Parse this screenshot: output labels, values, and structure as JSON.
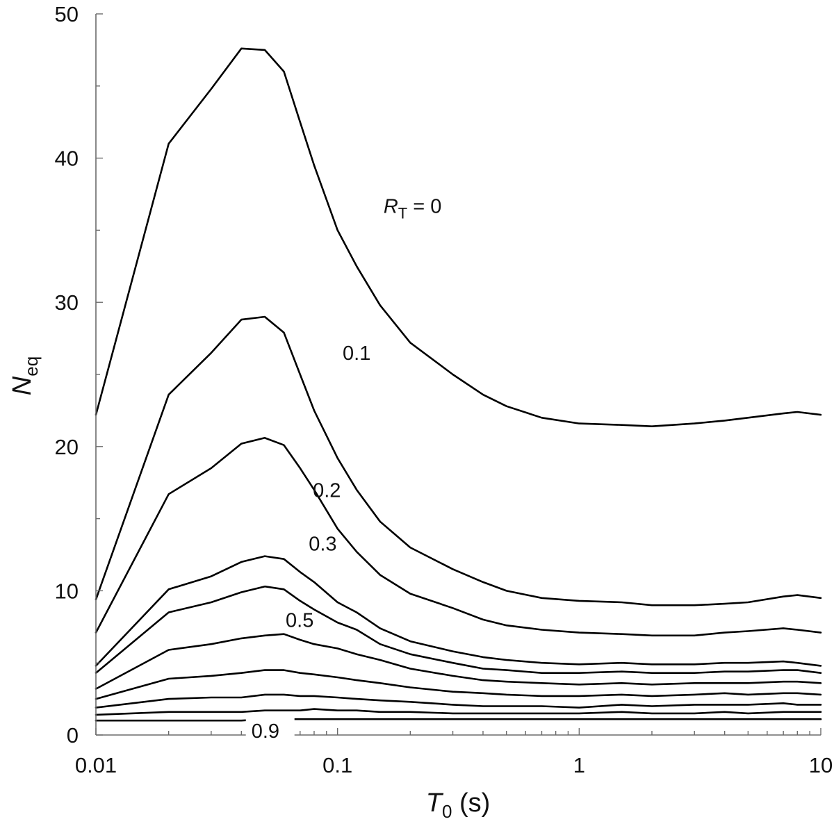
{
  "chart_data": {
    "type": "line",
    "title": "",
    "xlabel": {
      "main": "T",
      "sub": "0",
      "rest": " (s)"
    },
    "ylabel": {
      "main": "N",
      "sub": "eq"
    },
    "xscale": "log",
    "xlim": [
      0.01,
      10
    ],
    "ylim": [
      0,
      50
    ],
    "grid": false,
    "legend": "none",
    "x_ticks": [
      {
        "value": 0.01,
        "label": "0.01"
      },
      {
        "value": 0.1,
        "label": "0.1"
      },
      {
        "value": 1,
        "label": "1"
      },
      {
        "value": 10,
        "label": "10"
      }
    ],
    "y_ticks": [
      {
        "value": 0,
        "label": "0"
      },
      {
        "value": 10,
        "label": "10"
      },
      {
        "value": 20,
        "label": "20"
      },
      {
        "value": 30,
        "label": "30"
      },
      {
        "value": 40,
        "label": "40"
      },
      {
        "value": 50,
        "label": "50"
      }
    ],
    "x": [
      0.01,
      0.02,
      0.03,
      0.04,
      0.05,
      0.06,
      0.07,
      0.08,
      0.1,
      0.12,
      0.15,
      0.2,
      0.3,
      0.4,
      0.5,
      0.7,
      1,
      1.5,
      2,
      3,
      4,
      5,
      7,
      8,
      10
    ],
    "series": [
      {
        "name": "0",
        "values": [
          22.2,
          41.0,
          44.8,
          47.6,
          47.5,
          46.0,
          42.5,
          39.5,
          35.0,
          32.5,
          29.8,
          27.2,
          25.0,
          23.6,
          22.8,
          22.0,
          21.6,
          21.5,
          21.4,
          21.6,
          21.8,
          22.0,
          22.3,
          22.4,
          22.2
        ]
      },
      {
        "name": "0.1",
        "values": [
          9.4,
          23.6,
          26.5,
          28.8,
          29.0,
          27.9,
          25.0,
          22.5,
          19.2,
          17.0,
          14.8,
          13.0,
          11.5,
          10.6,
          10.0,
          9.5,
          9.3,
          9.2,
          9.0,
          9.0,
          9.1,
          9.2,
          9.6,
          9.7,
          9.5
        ]
      },
      {
        "name": "0.2",
        "values": [
          7.1,
          16.7,
          18.5,
          20.2,
          20.6,
          20.1,
          18.5,
          17.0,
          14.3,
          12.7,
          11.1,
          9.8,
          8.8,
          8.0,
          7.6,
          7.3,
          7.1,
          7.0,
          6.9,
          6.9,
          7.1,
          7.2,
          7.4,
          7.3,
          7.1
        ]
      },
      {
        "name": "0.3",
        "values": [
          4.8,
          10.1,
          11.0,
          12.0,
          12.4,
          12.2,
          11.3,
          10.6,
          9.2,
          8.5,
          7.4,
          6.5,
          5.8,
          5.4,
          5.2,
          5.0,
          4.9,
          5.0,
          4.9,
          4.9,
          5.0,
          5.0,
          5.1,
          5.0,
          4.8
        ]
      },
      {
        "name": "",
        "values": [
          4.3,
          8.5,
          9.2,
          9.9,
          10.3,
          10.1,
          9.3,
          8.7,
          7.8,
          7.3,
          6.3,
          5.6,
          5.0,
          4.6,
          4.5,
          4.3,
          4.3,
          4.4,
          4.3,
          4.3,
          4.4,
          4.4,
          4.5,
          4.5,
          4.3
        ]
      },
      {
        "name": "0.5",
        "values": [
          3.2,
          5.9,
          6.3,
          6.7,
          6.9,
          7.0,
          6.6,
          6.3,
          6.0,
          5.6,
          5.2,
          4.6,
          4.1,
          3.8,
          3.7,
          3.6,
          3.5,
          3.6,
          3.5,
          3.6,
          3.6,
          3.6,
          3.7,
          3.7,
          3.6
        ]
      },
      {
        "name": "",
        "values": [
          2.5,
          3.9,
          4.1,
          4.3,
          4.5,
          4.5,
          4.3,
          4.2,
          4.0,
          3.8,
          3.6,
          3.3,
          3.0,
          2.9,
          2.8,
          2.7,
          2.7,
          2.8,
          2.7,
          2.8,
          2.9,
          2.8,
          2.9,
          2.9,
          2.8
        ]
      },
      {
        "name": "",
        "values": [
          1.9,
          2.5,
          2.6,
          2.6,
          2.8,
          2.8,
          2.7,
          2.7,
          2.6,
          2.5,
          2.4,
          2.3,
          2.1,
          2.0,
          2.0,
          2.0,
          1.9,
          2.1,
          2.0,
          2.1,
          2.1,
          2.1,
          2.2,
          2.1,
          2.1
        ]
      },
      {
        "name": "",
        "values": [
          1.4,
          1.6,
          1.6,
          1.6,
          1.7,
          1.7,
          1.7,
          1.8,
          1.7,
          1.7,
          1.6,
          1.6,
          1.5,
          1.5,
          1.5,
          1.5,
          1.5,
          1.6,
          1.5,
          1.5,
          1.6,
          1.5,
          1.6,
          1.6,
          1.6
        ]
      },
      {
        "name": "0.9",
        "values": [
          1.0,
          1.0,
          1.0,
          1.0,
          1.1,
          1.1,
          1.1,
          1.1,
          1.1,
          1.1,
          1.1,
          1.1,
          1.1,
          1.1,
          1.1,
          1.1,
          1.1,
          1.1,
          1.1,
          1.1,
          1.1,
          1.1,
          1.1,
          1.1,
          1.1
        ]
      }
    ],
    "annotations": [
      {
        "series": "0",
        "prefix_main": "R",
        "prefix_sub": "T",
        "text": " = 0",
        "x": 0.155,
        "y": 36.2
      },
      {
        "series": "0.1",
        "text": "0.1",
        "x": 0.105,
        "y": 26.0
      },
      {
        "series": "0.2",
        "text": "0.2",
        "x": 0.079,
        "y": 16.5
      },
      {
        "series": "0.3",
        "text": "0.3",
        "x": 0.076,
        "y": 12.8
      },
      {
        "series": "0.5",
        "text": "0.5",
        "x": 0.061,
        "y": 7.5
      },
      {
        "series": "0.9",
        "text": "0.9",
        "x": 0.044,
        "y": -0.2
      }
    ]
  }
}
